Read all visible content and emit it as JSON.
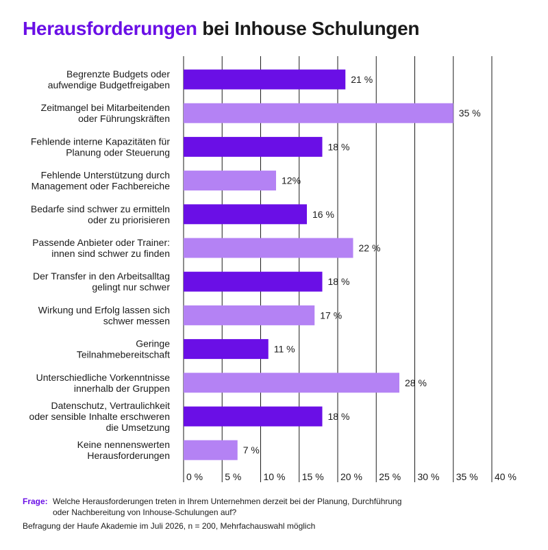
{
  "title_highlight": "Herausforderungen",
  "title_rest": "bei Inhouse Schulungen",
  "chart_data": {
    "type": "bar",
    "orientation": "horizontal",
    "categories": [
      [
        "Begrenzte Budgets oder",
        "aufwendige Budgetfreigaben"
      ],
      [
        "Zeitmangel bei Mitarbeitenden",
        "oder Führungskräften"
      ],
      [
        "Fehlende interne Kapazitäten für",
        "Planung oder Steuerung"
      ],
      [
        "Fehlende Unterstützung durch",
        "Management oder Fachbereiche"
      ],
      [
        "Bedarfe sind schwer zu ermitteln",
        "oder zu priorisieren"
      ],
      [
        "Passende Anbieter oder Trainer:",
        "innen sind schwer zu finden"
      ],
      [
        "Der Transfer in den Arbeitsalltag",
        "gelingt nur schwer"
      ],
      [
        "Wirkung und Erfolg lassen sich",
        "schwer messen"
      ],
      [
        "Geringe",
        "Teilnahmebereitschaft"
      ],
      [
        "Unterschiedliche Vorkenntnisse",
        "innerhalb der Gruppen"
      ],
      [
        "Datenschutz, Vertraulichkeit",
        "oder sensible Inhalte erschweren",
        "die Umsetzung"
      ],
      [
        "Keine nennenswerten",
        "Herausforderungen"
      ]
    ],
    "values": [
      21,
      35,
      18,
      12,
      16,
      22,
      18,
      17,
      11,
      28,
      18,
      7
    ],
    "value_labels": [
      "21 %",
      "35 %",
      "18 %",
      "12%",
      "16 %",
      "22 %",
      "18 %",
      "17 %",
      "11 %",
      "28 %",
      "18 %",
      "7 %"
    ],
    "xlim": [
      0,
      40
    ],
    "xticks": [
      "0 %",
      "5 %",
      "10 %",
      "15 %",
      "20 %",
      "25 %",
      "30 %",
      "35 %",
      "40 %"
    ],
    "grid": "vertical",
    "colors": {
      "dark": "#6a0fe6",
      "light": "#b482f4",
      "grid": "#1a1a1a"
    }
  },
  "footer": {
    "question_key": "Frage:",
    "question_text_1": "Welche Herausforderungen treten in Ihrem Unternehmen derzeit bei der Planung, Durchführung",
    "question_text_2": "oder Nachbereitung von Inhouse-Schulungen auf?",
    "source": "Befragung der Haufe Akademie im Juli 2026, n = 200, Mehrfachauswahl möglich"
  }
}
